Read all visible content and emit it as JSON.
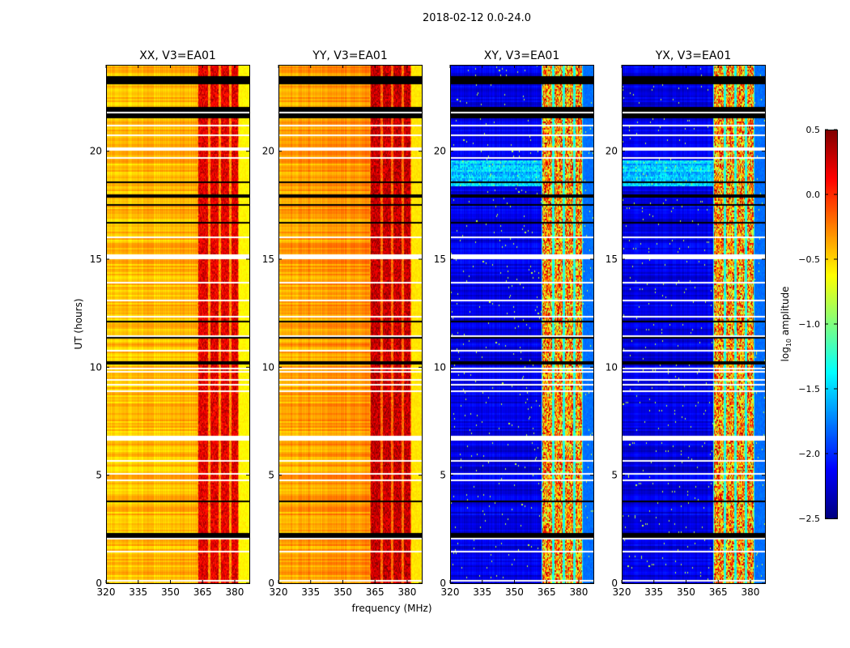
{
  "chart_data": {
    "type": "heatmap",
    "title": "2018-02-12 0.0-24.0",
    "xlabel": "frequency (MHz)",
    "ylabel": "UT (hours)",
    "xlim": [
      320,
      386.8
    ],
    "ylim": [
      0,
      24
    ],
    "xticks": [
      320,
      335,
      350,
      365,
      380
    ],
    "yticks": [
      0,
      5,
      10,
      15,
      20
    ],
    "colorbar": {
      "label": "log10 amplitude",
      "label_main": "log",
      "label_sub": "10",
      "label_rest": " amplitude",
      "colormap": "jet",
      "range": [
        -2.5,
        0.5
      ],
      "ticks": [
        0.5,
        0.0,
        -0.5,
        -1.0,
        -1.5,
        -2.0,
        -2.5
      ],
      "tick_labels": [
        "0.5",
        "0.0",
        "−0.5",
        "−1.0",
        "−1.5",
        "−2.0",
        "−2.5"
      ]
    },
    "panels": [
      {
        "title": "XX, V3=EA01",
        "baseline": -0.42,
        "band_level": 0.2,
        "edge_level": -0.6
      },
      {
        "title": "YY, V3=EA01",
        "baseline": -0.33,
        "band_level": 0.3,
        "edge_level": -0.55
      },
      {
        "title": "XY, V3=EA01",
        "baseline": -2.2,
        "band_level": -0.3,
        "edge_level": -1.8
      },
      {
        "title": "YX, V3=EA01",
        "baseline": -2.2,
        "band_level": -0.3,
        "edge_level": -1.8
      }
    ],
    "rfi_bands_mhz": [
      [
        363,
        367.5
      ],
      [
        368.5,
        372.5
      ],
      [
        373.5,
        377.5
      ],
      [
        378.5,
        381.5
      ]
    ],
    "enhanced_times_cross": [
      [
        18.4,
        19.6
      ]
    ],
    "flagged_black_hours": [
      [
        23.1,
        23.45
      ],
      [
        21.85,
        22.05
      ],
      [
        21.55,
        21.75
      ],
      [
        2.1,
        2.3
      ]
    ],
    "flagged_white_hours": [
      [
        15.0,
        15.25
      ],
      [
        6.6,
        6.85
      ],
      [
        21.75,
        21.85
      ],
      [
        1.4,
        1.5
      ],
      [
        2.0,
        2.1
      ]
    ]
  }
}
